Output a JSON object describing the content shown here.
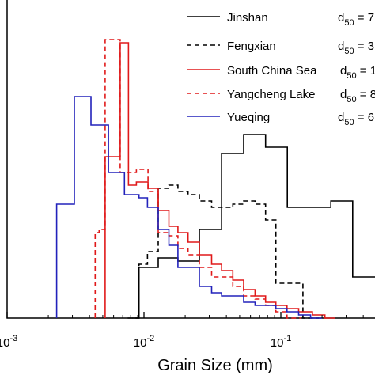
{
  "chart_data": {
    "type": "histogram-step",
    "xlabel": "Grain Size (mm)",
    "xscale": "log",
    "xlim": [
      0.001,
      0.5
    ],
    "ylim": [
      0,
      1
    ],
    "y_units": "fraction of plot height (no y-axis labels visible)",
    "x_ticks": [
      {
        "value": 0.001,
        "base": "10",
        "exp": "-3"
      },
      {
        "value": 0.01,
        "base": "10",
        "exp": "-2"
      },
      {
        "value": 0.1,
        "base": "10",
        "exp": "-1"
      }
    ],
    "legend_position": "top-right",
    "series": [
      {
        "name": "Jinshan",
        "d50": "d50 = 7",
        "color": "#000000",
        "dash": "",
        "edges": [
          0.0082,
          0.0092,
          0.0127,
          0.0177,
          0.0254,
          0.0369,
          0.0535,
          0.0773,
          0.1115,
          0.1606,
          0.232,
          0.335,
          0.5
        ],
        "values": [
          0.0,
          0.16,
          0.19,
          0.18,
          0.28,
          0.52,
          0.58,
          0.54,
          0.35,
          0.35,
          0.37,
          0.13
        ]
      },
      {
        "name": "Fengxian",
        "d50": "d50 = 3",
        "color": "#000000",
        "dash": "6,4",
        "edges": [
          0.0076,
          0.0092,
          0.0106,
          0.0127,
          0.0152,
          0.0177,
          0.021,
          0.0254,
          0.0312,
          0.0369,
          0.0446,
          0.0535,
          0.0648,
          0.0773,
          0.092,
          0.1115,
          0.145,
          0.19
        ],
        "values": [
          0.0,
          0.17,
          0.21,
          0.41,
          0.42,
          0.4,
          0.39,
          0.37,
          0.35,
          0.35,
          0.36,
          0.37,
          0.36,
          0.31,
          0.11,
          0.11,
          0.0
        ]
      },
      {
        "name": "South China Sea",
        "d50": "d50 = 1",
        "color": "#e0191a",
        "dash": "",
        "edges": [
          0.0052,
          0.006,
          0.0067,
          0.0077,
          0.0088,
          0.0107,
          0.0127,
          0.0152,
          0.0177,
          0.021,
          0.0254,
          0.0312,
          0.0369,
          0.0446,
          0.0535,
          0.0648,
          0.0773,
          0.092,
          0.111,
          0.135,
          0.17,
          0.21,
          0.25
        ],
        "values": [
          0.51,
          0.51,
          0.87,
          0.42,
          0.43,
          0.41,
          0.34,
          0.29,
          0.27,
          0.24,
          0.2,
          0.17,
          0.15,
          0.12,
          0.09,
          0.07,
          0.05,
          0.04,
          0.03,
          0.02,
          0.01,
          0.0
        ]
      },
      {
        "name": "Yangcheng Lake",
        "d50": "d50 = 8",
        "color": "#e0191a",
        "dash": "6,4",
        "edges": [
          0.0044,
          0.0047,
          0.0052,
          0.0059,
          0.0067,
          0.0077,
          0.0088,
          0.0107,
          0.0127,
          0.0152,
          0.0177,
          0.021,
          0.0254,
          0.0312,
          0.0369,
          0.0446,
          0.0535,
          0.0648,
          0.0773,
          0.092,
          0.111,
          0.14
        ],
        "values": [
          0.27,
          0.28,
          0.88,
          0.88,
          0.46,
          0.46,
          0.47,
          0.4,
          0.27,
          0.26,
          0.22,
          0.2,
          0.16,
          0.13,
          0.13,
          0.1,
          0.07,
          0.06,
          0.04,
          0.02,
          0.0
        ]
      },
      {
        "name": "Yueqing",
        "d50": "d50 = 6",
        "color": "#2222bb",
        "dash": "",
        "edges": [
          0.0023,
          0.0031,
          0.0041,
          0.0048,
          0.0055,
          0.0064,
          0.0072,
          0.0082,
          0.0092,
          0.0106,
          0.0127,
          0.0152,
          0.0177,
          0.021,
          0.0254,
          0.0312,
          0.0369,
          0.0446,
          0.0535,
          0.0648,
          0.0773,
          0.092,
          0.111,
          0.135,
          0.165,
          0.2
        ],
        "values": [
          0.36,
          0.7,
          0.61,
          0.61,
          0.46,
          0.46,
          0.39,
          0.39,
          0.38,
          0.35,
          0.28,
          0.23,
          0.16,
          0.16,
          0.1,
          0.08,
          0.07,
          0.07,
          0.05,
          0.04,
          0.04,
          0.03,
          0.02,
          0.01,
          0.0
        ]
      }
    ]
  }
}
